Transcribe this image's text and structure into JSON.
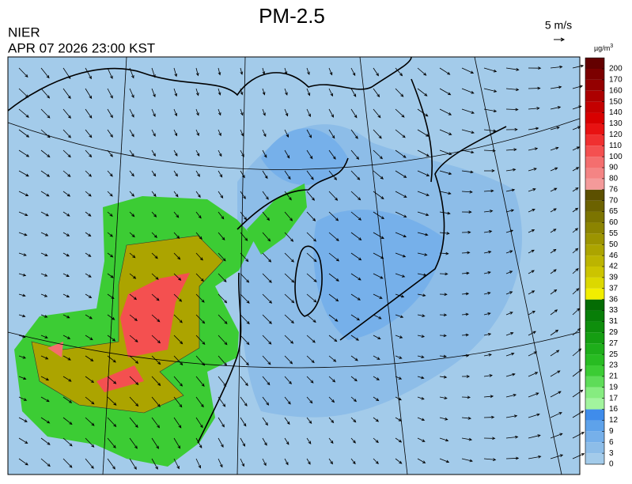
{
  "header": {
    "title": "PM-2.5",
    "agency": "NIER",
    "timestamp": "APR 07 2026 23:00 KST",
    "wind_scale": "5 m/s"
  },
  "colorbar": {
    "unit": {
      "base": "µg/m",
      "exponent": "3"
    },
    "ticks": [
      0,
      3,
      6,
      9,
      12,
      16,
      17,
      19,
      21,
      23,
      25,
      27,
      29,
      31,
      33,
      36,
      37,
      39,
      42,
      46,
      50,
      55,
      60,
      65,
      70,
      76,
      80,
      90,
      100,
      110,
      120,
      130,
      140,
      150,
      160,
      170,
      200
    ],
    "colors": [
      "#a3cbea",
      "#8dbde8",
      "#76b0ea",
      "#5ea2ea",
      "#3f8ceb",
      "#a2f49e",
      "#86ec80",
      "#5edc58",
      "#3ccc34",
      "#28bc22",
      "#1eae1a",
      "#159e12",
      "#0e8e0c",
      "#087e08",
      "#046c04",
      "#f2ee00",
      "#dcd800",
      "#ccc400",
      "#bcb400",
      "#aca400",
      "#9c9400",
      "#8c8400",
      "#7c7400",
      "#6c6200",
      "#5c5000",
      "#f49a9a",
      "#f48484",
      "#f46e6e",
      "#f45050",
      "#f03030",
      "#e81212",
      "#d80000",
      "#c40000",
      "#ac0000",
      "#940000",
      "#7c0000",
      "#640000"
    ]
  }
}
